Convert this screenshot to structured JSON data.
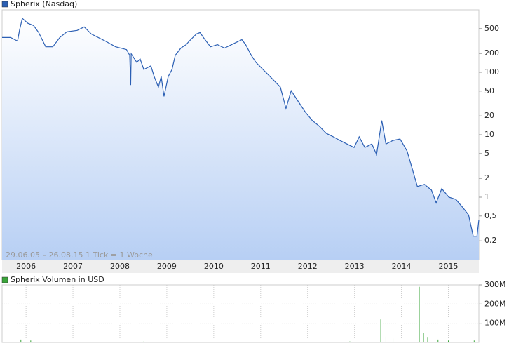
{
  "chart_data": [
    {
      "type": "line",
      "annotation": "29.06.05 – 26.08.15   1 Tick = 1 Woche",
      "x": [
        2005.49,
        2005.67,
        2005.82,
        2005.86,
        2005.92,
        2006.04,
        2006.16,
        2006.27,
        2006.42,
        2006.57,
        2006.72,
        2006.87,
        2007.09,
        2007.24,
        2007.39,
        2007.69,
        2007.91,
        2008.14,
        2008.21,
        2008.23,
        2008.24,
        2008.36,
        2008.43,
        2008.51,
        2008.66,
        2008.73,
        2008.82,
        2008.88,
        2008.94,
        2009.03,
        2009.11,
        2009.18,
        2009.3,
        2009.41,
        2009.48,
        2009.63,
        2009.71,
        2009.78,
        2009.93,
        2010.08,
        2010.23,
        2010.38,
        2010.6,
        2010.68,
        2010.8,
        2010.9,
        2011.05,
        2011.2,
        2011.42,
        2011.54,
        2011.65,
        2011.8,
        2011.95,
        2012.1,
        2012.25,
        2012.4,
        2012.55,
        2012.69,
        2012.84,
        2012.99,
        2013.1,
        2013.22,
        2013.37,
        2013.47,
        2013.58,
        2013.67,
        2013.82,
        2013.97,
        2014.12,
        2014.23,
        2014.34,
        2014.49,
        2014.64,
        2014.74,
        2014.86,
        2015.01,
        2015.16,
        2015.31,
        2015.43,
        2015.53,
        2015.61,
        2015.65
      ],
      "series": [
        {
          "name": "Spherix (Nasdaq)",
          "color": "#2b5fb4",
          "values": [
            361,
            361,
            316,
            469,
            731,
            608,
            562,
            433,
            256,
            256,
            361,
            445,
            469,
            533,
            411,
            316,
            256,
            231,
            187,
            62.5,
            198,
            144,
            164,
            111,
            127,
            85.5,
            57.8,
            85.5,
            41.1,
            85.5,
            111,
            187,
            244,
            277,
            316,
            411,
            433,
            361,
            256,
            277,
            244,
            277,
            333,
            277,
            187,
            144,
            111,
            85.5,
            57.8,
            26.4,
            50.7,
            34.2,
            23.1,
            16.9,
            13.7,
            10.5,
            9.25,
            8.11,
            7.11,
            6.25,
            9.25,
            6.25,
            7.11,
            4.81,
            16.9,
            7.11,
            8.11,
            8.55,
            5.48,
            2.85,
            1.48,
            1.6,
            1.3,
            0.81,
            1.37,
            1,
            0.92,
            0.68,
            0.52,
            0.237,
            0.237,
            0.43
          ]
        }
      ],
      "log": true,
      "xlim": [
        2005.49,
        2015.65
      ],
      "xticks": [
        2006,
        2007,
        2008,
        2009,
        2010,
        2011,
        2012,
        2013,
        2014,
        2015
      ],
      "ylim": [
        0.1,
        1000
      ],
      "yticks": [
        {
          "value": 0.2,
          "label": "0,2"
        },
        {
          "value": 0.5,
          "label": "0,5"
        },
        1,
        2,
        5,
        10,
        20,
        50,
        100,
        200,
        500
      ]
    },
    {
      "type": "bar",
      "x": [
        2005.89,
        2006.1,
        2007.3,
        2008.5,
        2011.2,
        2012.9,
        2013.56,
        2013.67,
        2013.82,
        2014.38,
        2014.47,
        2014.56,
        2014.78,
        2015.0,
        2015.55
      ],
      "series": [
        {
          "name": "Spherix Volumen in USD",
          "color": "#3aa53a",
          "values": [
            15000000,
            10000000,
            3000000,
            4000000,
            3000000,
            5000000,
            120000000,
            30000000,
            20000000,
            290000000,
            50000000,
            25000000,
            15000000,
            10000000,
            10000000
          ]
        }
      ],
      "xlim": [
        2005.49,
        2015.65
      ],
      "xticks": [
        2006,
        2007,
        2008,
        2009,
        2010,
        2011,
        2012,
        2013,
        2014,
        2015
      ],
      "ylim": [
        0,
        300000000
      ],
      "yticks": [
        {
          "value": 100000000,
          "label": "100M"
        },
        {
          "value": 200000000,
          "label": "200M"
        },
        {
          "value": 300000000,
          "label": "300M"
        }
      ],
      "grid": true
    }
  ]
}
